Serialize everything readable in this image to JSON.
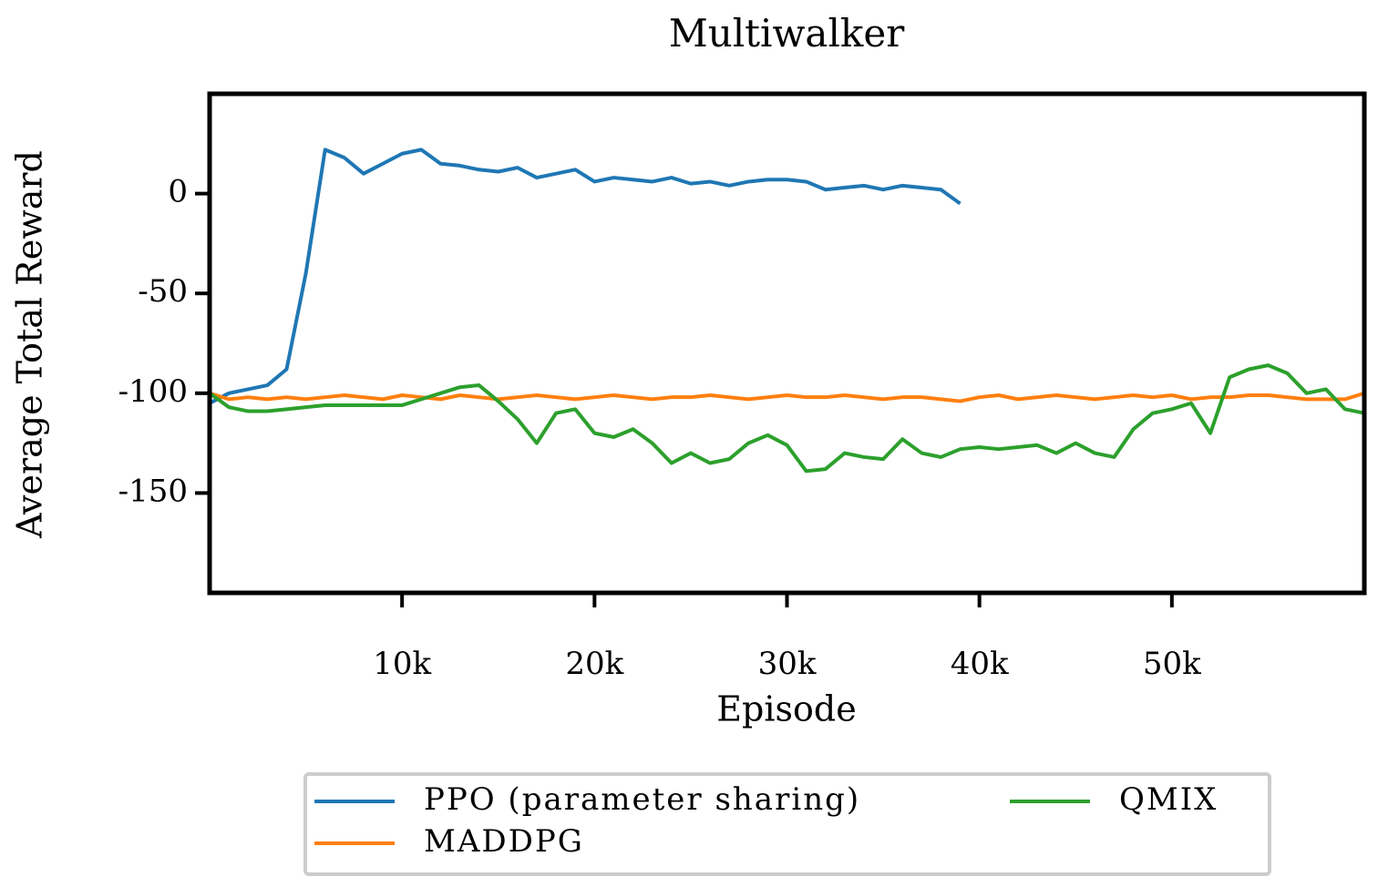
{
  "chart_data": {
    "type": "line",
    "title": "Multiwalker",
    "x_label": "Episode",
    "y_label": "Average Total Reward",
    "x": [
      0,
      1000,
      2000,
      3000,
      4000,
      5000,
      6000,
      7000,
      8000,
      9000,
      10000,
      11000,
      12000,
      13000,
      14000,
      15000,
      16000,
      17000,
      18000,
      19000,
      20000,
      21000,
      22000,
      23000,
      24000,
      25000,
      26000,
      27000,
      28000,
      29000,
      30000,
      31000,
      32000,
      33000,
      34000,
      35000,
      36000,
      37000,
      38000,
      39000,
      40000,
      41000,
      42000,
      43000,
      44000,
      45000,
      46000,
      47000,
      48000,
      49000,
      50000,
      51000,
      52000,
      53000,
      54000,
      55000,
      56000,
      57000,
      58000,
      59000,
      60000
    ],
    "series": [
      {
        "name": "PPO (parameter sharing)",
        "color": "#1f77b4",
        "values": [
          -105,
          -100,
          -98,
          -96,
          -88,
          -40,
          22,
          18,
          10,
          15,
          20,
          22,
          15,
          14,
          12,
          11,
          13,
          8,
          10,
          12,
          6,
          8,
          7,
          6,
          8,
          5,
          6,
          4,
          6,
          7,
          7,
          6,
          2,
          3,
          4,
          2,
          4,
          3,
          2,
          -5,
          null,
          null,
          null,
          null,
          null,
          null,
          null,
          null,
          null,
          null,
          null,
          null,
          null,
          null,
          null,
          null,
          null,
          null,
          null,
          null,
          null
        ]
      },
      {
        "name": "MADDPG",
        "color": "#ff7f0e",
        "values": [
          -100,
          -103,
          -102,
          -103,
          -102,
          -103,
          -102,
          -101,
          -102,
          -103,
          -101,
          -102,
          -103,
          -101,
          -102,
          -103,
          -102,
          -101,
          -102,
          -103,
          -102,
          -101,
          -102,
          -103,
          -102,
          -102,
          -101,
          -102,
          -103,
          -102,
          -101,
          -102,
          -102,
          -101,
          -102,
          -103,
          -102,
          -102,
          -103,
          -104,
          -102,
          -101,
          -103,
          -102,
          -101,
          -102,
          -103,
          -102,
          -101,
          -102,
          -101,
          -103,
          -102,
          -102,
          -101,
          -101,
          -102,
          -103,
          -103,
          -103,
          -100
        ]
      },
      {
        "name": "QMIX",
        "color": "#2ca02c",
        "values": [
          -100,
          -107,
          -109,
          -109,
          -108,
          -107,
          -106,
          -106,
          -106,
          -106,
          -106,
          -103,
          -100,
          -97,
          -96,
          -104,
          -113,
          -125,
          -110,
          -108,
          -120,
          -122,
          -118,
          -125,
          -135,
          -130,
          -135,
          -133,
          -125,
          -121,
          -126,
          -139,
          -138,
          -130,
          -132,
          -133,
          -123,
          -130,
          -132,
          -128,
          -127,
          -128,
          -127,
          -126,
          -130,
          -125,
          -130,
          -132,
          -118,
          -110,
          -108,
          -105,
          -120,
          -92,
          -88,
          -86,
          -90,
          -100,
          -98,
          -108,
          -110
        ]
      }
    ],
    "xlim": [
      0,
      60000
    ],
    "ylim": [
      -200,
      50
    ],
    "xticks": [
      {
        "value": 10000,
        "label": "10k"
      },
      {
        "value": 20000,
        "label": "20k"
      },
      {
        "value": 30000,
        "label": "30k"
      },
      {
        "value": 40000,
        "label": "40k"
      },
      {
        "value": 50000,
        "label": "50k"
      }
    ],
    "yticks": [
      0,
      -50,
      -100,
      -150
    ],
    "grid": false,
    "legend": "below"
  }
}
